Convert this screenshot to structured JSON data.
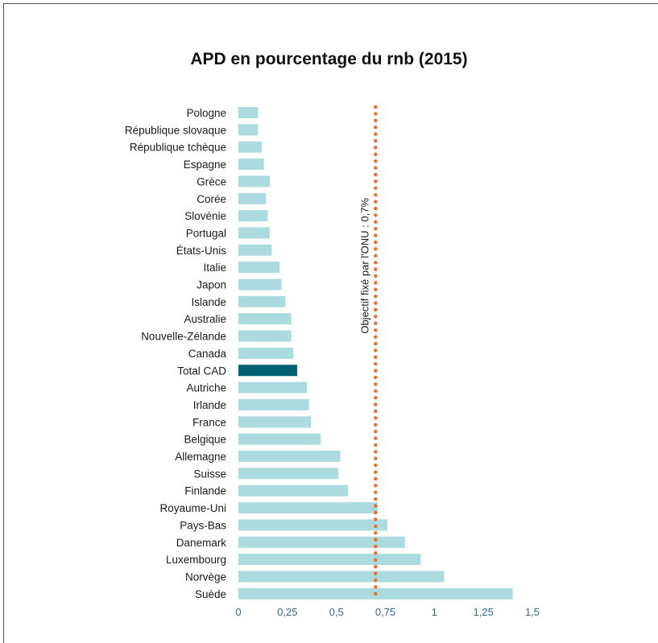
{
  "chart_data": {
    "type": "bar",
    "orientation": "horizontal",
    "title": "APD en pourcentage du rnb (2015)",
    "xlabel": "",
    "ylabel": "",
    "xlim": [
      0,
      1.5
    ],
    "ticks": [
      {
        "value": 0,
        "label": "0"
      },
      {
        "value": 0.25,
        "label": "0,25"
      },
      {
        "value": 0.5,
        "label": "0,5"
      },
      {
        "value": 0.75,
        "label": "0,75"
      },
      {
        "value": 1,
        "label": "1"
      },
      {
        "value": 1.25,
        "label": "1,25"
      },
      {
        "value": 1.5,
        "label": "1,5"
      }
    ],
    "categories": [
      "Pologne",
      "République slovaque",
      "République tchèque",
      "Espagne",
      "Grèce",
      "Corée",
      "Slovénie",
      "Portugal",
      "États-Unis",
      "Italie",
      "Japon",
      "Islande",
      "Australie",
      "Nouvelle-Zélande",
      "Canada",
      "Total CAD",
      "Autriche",
      "Irlande",
      "France",
      "Belgique",
      "Allemagne",
      "Suisse",
      "Finlande",
      "Royaume-Uni",
      "Pays-Bas",
      "Danemark",
      "Luxembourg",
      "Norvège",
      "Suède"
    ],
    "values": [
      0.1,
      0.1,
      0.12,
      0.13,
      0.16,
      0.14,
      0.15,
      0.16,
      0.17,
      0.21,
      0.22,
      0.24,
      0.27,
      0.27,
      0.28,
      0.3,
      0.35,
      0.36,
      0.37,
      0.42,
      0.52,
      0.51,
      0.56,
      0.71,
      0.76,
      0.85,
      0.93,
      1.05,
      1.4
    ],
    "highlight": "Total CAD",
    "reference_line": {
      "value": 0.7,
      "label": "Objectif fixé par l'ONU : 0,7%"
    },
    "colors": {
      "bar": "#abdbde",
      "highlight": "#005f73",
      "reference": "#e8702a",
      "tick_text": "#2f6b86"
    },
    "grid": false,
    "legend": "none"
  }
}
